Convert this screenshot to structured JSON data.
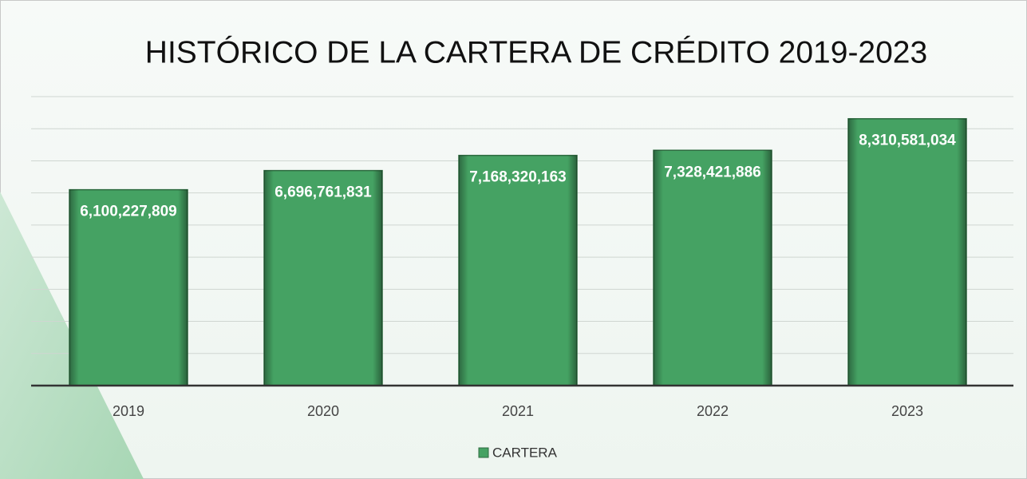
{
  "chart_data": {
    "type": "bar",
    "title": "HISTÓRICO DE LA CARTERA DE CRÉDITO 2019-2023",
    "categories": [
      "2019",
      "2020",
      "2021",
      "2022",
      "2023"
    ],
    "series": [
      {
        "name": "CARTERA",
        "color": "#45a263",
        "values": [
          6100227809,
          6696761831,
          7168320163,
          7328421886,
          8310581034
        ],
        "value_labels": [
          "6,100,227,809",
          "6,696,761,831",
          "7,168,320,163",
          "7,328,421,886",
          "8,310,581,034"
        ]
      }
    ],
    "ylim": [
      0,
      9000000000
    ],
    "yticks": [
      0,
      1000000000,
      2000000000,
      3000000000,
      4000000000,
      5000000000,
      6000000000,
      7000000000,
      8000000000,
      9000000000
    ],
    "grid": true
  }
}
